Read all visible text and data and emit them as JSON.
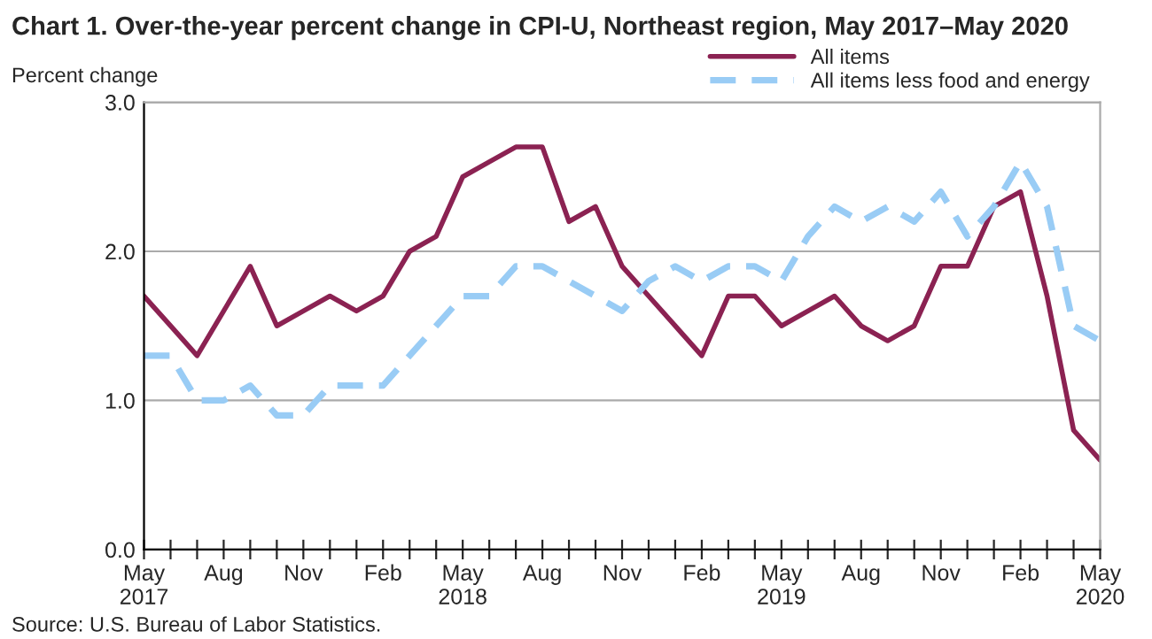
{
  "chart_data": {
    "type": "line",
    "title": "Chart 1. Over-the-year percent change in CPI-U, Northeast region, May 2017–May 2020",
    "ylabel": "Percent change",
    "categories": [
      "May\n2017",
      null,
      null,
      "Aug",
      null,
      null,
      "Nov",
      null,
      null,
      "Feb",
      null,
      null,
      "May\n2018",
      null,
      null,
      "Aug",
      null,
      null,
      "Nov",
      null,
      null,
      "Feb",
      null,
      null,
      "May\n2019",
      null,
      null,
      "Aug",
      null,
      null,
      "Nov",
      null,
      null,
      "Feb",
      null,
      null,
      "May\n2020"
    ],
    "series": [
      {
        "name": "All items",
        "color": "#8b2252",
        "line_style": "solid",
        "values": [
          1.7,
          1.5,
          1.3,
          1.6,
          1.9,
          1.5,
          1.6,
          1.7,
          1.6,
          1.7,
          2.0,
          2.1,
          2.5,
          2.6,
          2.7,
          2.7,
          2.2,
          2.3,
          1.9,
          1.7,
          1.5,
          1.3,
          1.7,
          1.7,
          1.5,
          1.6,
          1.7,
          1.5,
          1.4,
          1.5,
          1.9,
          1.9,
          2.3,
          2.4,
          1.7,
          0.8,
          0.6
        ]
      },
      {
        "name": "All items less food and energy",
        "color": "#99ccf5",
        "line_style": "dashed",
        "values": [
          1.3,
          1.3,
          1.0,
          1.0,
          1.1,
          0.9,
          0.9,
          1.1,
          1.1,
          1.1,
          1.3,
          1.5,
          1.7,
          1.7,
          1.9,
          1.9,
          1.8,
          1.7,
          1.6,
          1.8,
          1.9,
          1.8,
          1.9,
          1.9,
          1.8,
          2.1,
          2.3,
          2.2,
          2.3,
          2.2,
          2.4,
          2.1,
          2.3,
          2.6,
          2.3,
          1.5,
          1.4
        ]
      }
    ],
    "ylim": [
      0,
      3.0
    ],
    "yticks": [
      {
        "value": 0,
        "label": "0.0"
      },
      {
        "value": 1,
        "label": "1.0"
      },
      {
        "value": 2,
        "label": "2.0"
      },
      {
        "value": 3,
        "label": "3.0"
      }
    ],
    "grid": "y",
    "legend": "top right",
    "marker": "none",
    "annotations": [
      "Source: U.S. Bureau of Labor Statistics."
    ]
  }
}
